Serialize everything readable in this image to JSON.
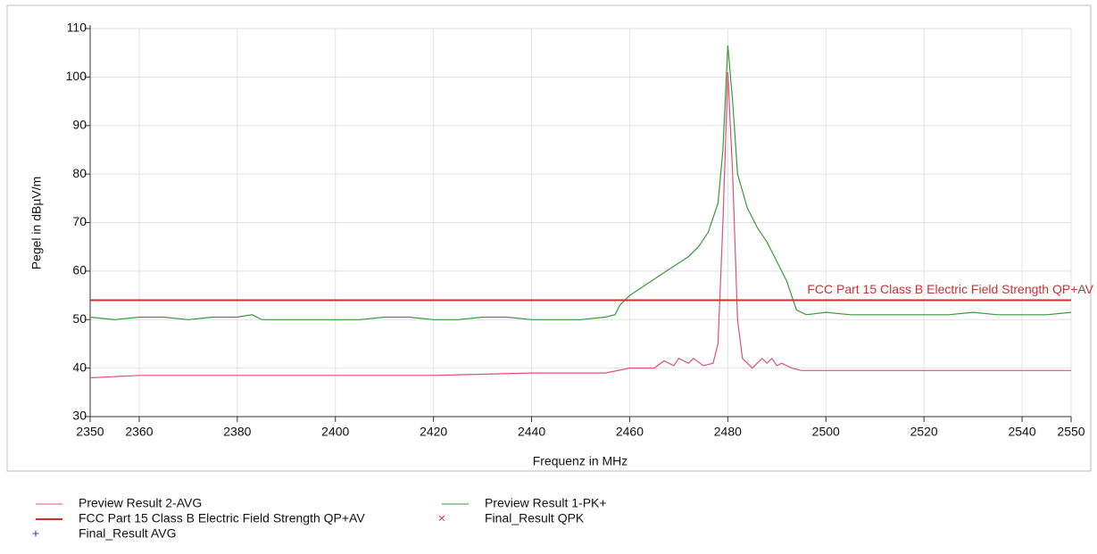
{
  "chart_data": {
    "type": "line",
    "xlabel": "Frequenz in MHz",
    "ylabel": "Pegel in dBµV/m",
    "xlim": [
      2350,
      2550
    ],
    "ylim": [
      30,
      110
    ],
    "xticks": [
      2350,
      2360,
      2380,
      2400,
      2420,
      2440,
      2460,
      2480,
      2500,
      2520,
      2540,
      2550
    ],
    "yticks": [
      30,
      40,
      50,
      60,
      70,
      80,
      90,
      100,
      110
    ],
    "grid": true,
    "annotation": "FCC Part 15 Class B Electric Field Strength QP+AV",
    "series": [
      {
        "name": "Preview Result 2-AVG",
        "color": "#e0507a",
        "marker": "line",
        "x": [
          2350,
          2360,
          2380,
          2400,
          2420,
          2440,
          2450,
          2455,
          2460,
          2465,
          2467,
          2469,
          2470,
          2472,
          2473,
          2475,
          2477,
          2478,
          2479,
          2480,
          2481,
          2482,
          2483,
          2485,
          2487,
          2488,
          2489,
          2490,
          2491,
          2493,
          2495,
          2500,
          2510,
          2530,
          2550
        ],
        "values": [
          38,
          38.5,
          38.5,
          38.5,
          38.5,
          39,
          39,
          39,
          40,
          40,
          41.5,
          40.5,
          42,
          41,
          42,
          40.5,
          41,
          45,
          70,
          101,
          80,
          50,
          42,
          40,
          42,
          41,
          42,
          40.5,
          41,
          40,
          39.5,
          39.5,
          39.5,
          39.5,
          39.5
        ]
      },
      {
        "name": "Preview Result 1-PK+",
        "color": "#3a9a3a",
        "marker": "line",
        "x": [
          2350,
          2355,
          2360,
          2365,
          2370,
          2375,
          2380,
          2383,
          2385,
          2390,
          2395,
          2400,
          2405,
          2410,
          2415,
          2420,
          2425,
          2430,
          2435,
          2440,
          2445,
          2450,
          2455,
          2457,
          2458,
          2460,
          2463,
          2466,
          2469,
          2472,
          2474,
          2476,
          2478,
          2479,
          2480,
          2481,
          2482,
          2484,
          2486,
          2488,
          2490,
          2492,
          2493,
          2494,
          2496,
          2500,
          2505,
          2510,
          2515,
          2520,
          2525,
          2530,
          2535,
          2540,
          2545,
          2550
        ],
        "values": [
          50.5,
          50,
          50.5,
          50.5,
          50,
          50.5,
          50.5,
          51,
          50,
          50,
          50,
          50,
          50,
          50.5,
          50.5,
          50,
          50,
          50.5,
          50.5,
          50,
          50,
          50,
          50.5,
          51,
          53,
          55,
          57,
          59,
          61,
          63,
          65,
          68,
          74,
          85,
          106.5,
          95,
          80,
          73,
          69,
          66,
          62,
          58,
          55,
          52,
          51,
          51.5,
          51,
          51,
          51,
          51,
          51,
          51.5,
          51,
          51,
          51,
          51.5
        ]
      },
      {
        "name": "FCC Part 15 Class B Electric Field Strength QP+AV",
        "color": "#c83232",
        "marker": "line",
        "x": [
          2350,
          2550
        ],
        "values": [
          54,
          54
        ]
      },
      {
        "name": "Final_Result QPK",
        "color": "#e03030",
        "marker": "x",
        "x": [],
        "values": []
      },
      {
        "name": "Final_Result AVG",
        "color": "#3040b0",
        "marker": "+",
        "x": [],
        "values": []
      }
    ]
  }
}
